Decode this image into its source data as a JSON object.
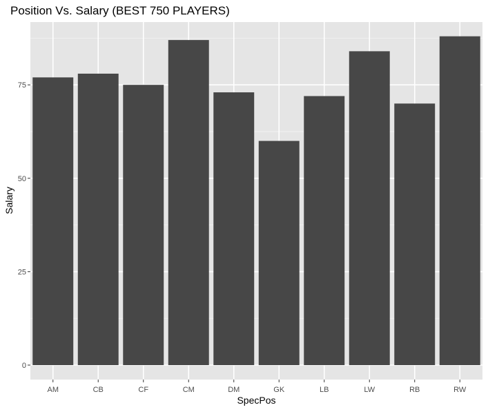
{
  "chart_data": {
    "type": "bar",
    "title": "Position Vs. Salary (BEST 750 PLAYERS)",
    "xlabel": "SpecPos",
    "ylabel": "Salary",
    "categories": [
      "AM",
      "CB",
      "CF",
      "CM",
      "DM",
      "GK",
      "LB",
      "LW",
      "RB",
      "RW"
    ],
    "values": [
      77,
      78,
      75,
      87,
      73,
      60,
      72,
      84,
      70,
      88
    ],
    "ylim": [
      0,
      92
    ],
    "yticks": [
      0,
      25,
      50,
      75
    ],
    "grid": true,
    "legend": "none",
    "colors": {
      "bar": "#474747",
      "panel": "#e5e5e5",
      "grid_major": "#ffffff",
      "grid_minor": "#f2f2f2",
      "tick_text": "#4d4d4d",
      "tick_mark": "#333333",
      "title_text": "#000000"
    }
  }
}
